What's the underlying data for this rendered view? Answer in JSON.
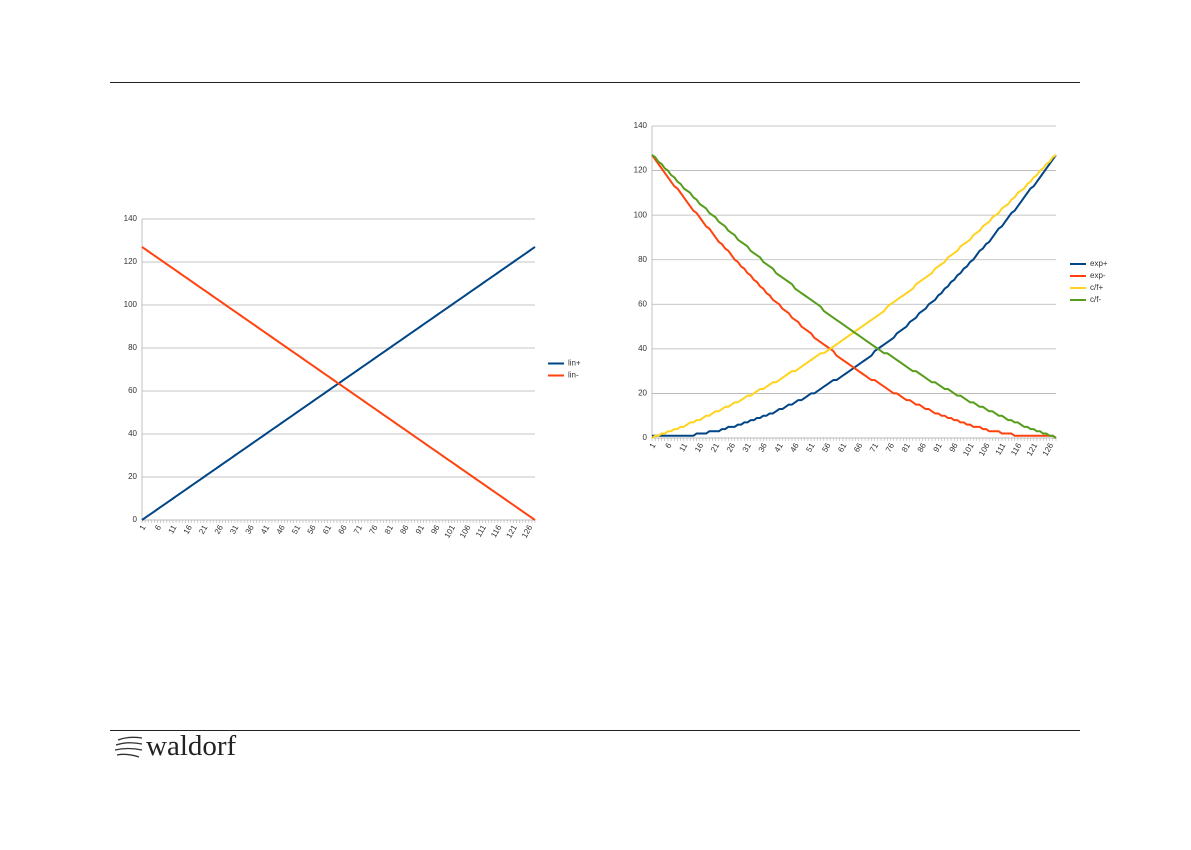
{
  "footer": {
    "logo": "waldorf"
  },
  "chart_data": [
    {
      "type": "line",
      "legend": "right",
      "grid": true,
      "categories": [
        1,
        null,
        null,
        null,
        null,
        6,
        null,
        null,
        null,
        null,
        11,
        null,
        null,
        null,
        null,
        16,
        null,
        null,
        null,
        null,
        21,
        null,
        null,
        null,
        null,
        26,
        null,
        null,
        null,
        null,
        31,
        null,
        null,
        null,
        null,
        36,
        null,
        null,
        null,
        null,
        41,
        null,
        null,
        null,
        null,
        46,
        null,
        null,
        null,
        null,
        51,
        null,
        null,
        null,
        null,
        56,
        null,
        null,
        null,
        null,
        61,
        null,
        null,
        null,
        null,
        66,
        null,
        null,
        null,
        null,
        71,
        null,
        null,
        null,
        null,
        76,
        null,
        null,
        null,
        null,
        81,
        null,
        null,
        null,
        null,
        86,
        null,
        null,
        null,
        null,
        91,
        null,
        null,
        null,
        null,
        96,
        null,
        null,
        null,
        null,
        101,
        null,
        null,
        null,
        null,
        106,
        null,
        null,
        null,
        null,
        111,
        null,
        null,
        null,
        null,
        116,
        null,
        null,
        null,
        null,
        121,
        null,
        null,
        null,
        null,
        126,
        null,
        null
      ],
      "ylim": [
        0,
        140
      ],
      "yticks": [
        0,
        20,
        40,
        60,
        80,
        100,
        120,
        140
      ],
      "series": [
        {
          "name": "lin+",
          "color": "#004586",
          "values": [
            0,
            1,
            2,
            3,
            4,
            5,
            6,
            7,
            8,
            9,
            10,
            11,
            12,
            13,
            14,
            15,
            16,
            17,
            18,
            19,
            20,
            21,
            22,
            23,
            24,
            25,
            26,
            27,
            28,
            29,
            30,
            31,
            32,
            33,
            34,
            35,
            36,
            37,
            38,
            39,
            40,
            41,
            42,
            43,
            44,
            45,
            46,
            47,
            48,
            49,
            50,
            51,
            52,
            53,
            54,
            55,
            56,
            57,
            58,
            59,
            60,
            61,
            62,
            63,
            64,
            65,
            66,
            67,
            68,
            69,
            70,
            71,
            72,
            73,
            74,
            75,
            76,
            77,
            78,
            79,
            80,
            81,
            82,
            83,
            84,
            85,
            86,
            87,
            88,
            89,
            90,
            91,
            92,
            93,
            94,
            95,
            96,
            97,
            98,
            99,
            100,
            101,
            102,
            103,
            104,
            105,
            106,
            107,
            108,
            109,
            110,
            111,
            112,
            113,
            114,
            115,
            116,
            117,
            118,
            119,
            120,
            121,
            122,
            123,
            124,
            125,
            126,
            127
          ]
        },
        {
          "name": "lin-",
          "color": "#ff420e",
          "values": [
            127,
            126,
            125,
            124,
            123,
            122,
            121,
            120,
            119,
            118,
            117,
            116,
            115,
            114,
            113,
            112,
            111,
            110,
            109,
            108,
            107,
            106,
            105,
            104,
            103,
            102,
            101,
            100,
            99,
            98,
            97,
            96,
            95,
            94,
            93,
            92,
            91,
            90,
            89,
            88,
            87,
            86,
            85,
            84,
            83,
            82,
            81,
            80,
            79,
            78,
            77,
            76,
            75,
            74,
            73,
            72,
            71,
            70,
            69,
            68,
            67,
            66,
            65,
            64,
            63,
            62,
            61,
            60,
            59,
            58,
            57,
            56,
            55,
            54,
            53,
            52,
            51,
            50,
            49,
            48,
            47,
            46,
            45,
            44,
            43,
            42,
            41,
            40,
            39,
            38,
            37,
            36,
            35,
            34,
            33,
            32,
            31,
            30,
            29,
            28,
            27,
            26,
            25,
            24,
            23,
            22,
            21,
            20,
            19,
            18,
            17,
            16,
            15,
            14,
            13,
            12,
            11,
            10,
            9,
            8,
            7,
            6,
            5,
            4,
            3,
            2,
            1,
            0
          ]
        }
      ]
    },
    {
      "type": "line",
      "legend": "right",
      "grid": true,
      "categories": [
        1,
        null,
        null,
        null,
        null,
        6,
        null,
        null,
        null,
        null,
        11,
        null,
        null,
        null,
        null,
        16,
        null,
        null,
        null,
        null,
        21,
        null,
        null,
        null,
        null,
        26,
        null,
        null,
        null,
        null,
        31,
        null,
        null,
        null,
        null,
        36,
        null,
        null,
        null,
        null,
        41,
        null,
        null,
        null,
        null,
        46,
        null,
        null,
        null,
        null,
        51,
        null,
        null,
        null,
        null,
        56,
        null,
        null,
        null,
        null,
        61,
        null,
        null,
        null,
        null,
        66,
        null,
        null,
        null,
        null,
        71,
        null,
        null,
        null,
        null,
        76,
        null,
        null,
        null,
        null,
        81,
        null,
        null,
        null,
        null,
        86,
        null,
        null,
        null,
        null,
        91,
        null,
        null,
        null,
        null,
        96,
        null,
        null,
        null,
        null,
        101,
        null,
        null,
        null,
        null,
        106,
        null,
        null,
        null,
        null,
        111,
        null,
        null,
        null,
        null,
        116,
        null,
        null,
        null,
        null,
        121,
        null,
        null,
        null,
        null,
        126,
        null,
        null
      ],
      "ylim": [
        0,
        140
      ],
      "yticks": [
        0,
        20,
        40,
        60,
        80,
        100,
        120,
        140
      ],
      "series": [
        {
          "name": "exp+",
          "color": "#004586",
          "values": [
            1,
            1,
            1,
            1,
            1,
            1,
            1,
            1,
            1,
            1,
            1,
            1,
            1,
            1,
            2,
            2,
            2,
            2,
            3,
            3,
            3,
            3,
            4,
            4,
            5,
            5,
            5,
            6,
            6,
            7,
            7,
            8,
            8,
            9,
            9,
            10,
            10,
            11,
            11,
            12,
            13,
            13,
            14,
            15,
            15,
            16,
            17,
            17,
            18,
            19,
            20,
            20,
            21,
            22,
            23,
            24,
            25,
            26,
            26,
            27,
            28,
            29,
            30,
            31,
            32,
            33,
            34,
            35,
            36,
            37,
            39,
            40,
            41,
            42,
            43,
            44,
            45,
            47,
            48,
            49,
            50,
            52,
            53,
            54,
            56,
            57,
            58,
            60,
            61,
            62,
            64,
            65,
            67,
            68,
            70,
            71,
            73,
            74,
            76,
            77,
            79,
            80,
            82,
            84,
            85,
            87,
            88,
            90,
            92,
            94,
            95,
            97,
            99,
            101,
            102,
            104,
            106,
            108,
            110,
            112,
            113,
            115,
            117,
            119,
            121,
            123,
            125,
            127
          ]
        },
        {
          "name": "exp-",
          "color": "#ff420e",
          "values": [
            127,
            125,
            123,
            121,
            119,
            117,
            115,
            113,
            112,
            110,
            108,
            106,
            104,
            102,
            101,
            99,
            97,
            95,
            94,
            92,
            90,
            88,
            87,
            85,
            84,
            82,
            80,
            79,
            77,
            76,
            74,
            73,
            71,
            70,
            68,
            67,
            65,
            64,
            62,
            61,
            60,
            58,
            57,
            56,
            54,
            53,
            52,
            50,
            49,
            48,
            47,
            45,
            44,
            43,
            42,
            41,
            40,
            39,
            37,
            36,
            35,
            34,
            33,
            32,
            31,
            30,
            29,
            28,
            27,
            26,
            26,
            25,
            24,
            23,
            22,
            21,
            20,
            20,
            19,
            18,
            17,
            17,
            16,
            15,
            15,
            14,
            13,
            13,
            12,
            11,
            11,
            10,
            10,
            9,
            9,
            8,
            8,
            7,
            7,
            6,
            6,
            5,
            5,
            5,
            4,
            4,
            3,
            3,
            3,
            3,
            2,
            2,
            2,
            2,
            1,
            1,
            1,
            1,
            1,
            1,
            1,
            1,
            1,
            1,
            1,
            1,
            1,
            0
          ]
        },
        {
          "name": "c/f+",
          "color": "#ffd320",
          "values": [
            0,
            1,
            1,
            2,
            2,
            3,
            3,
            4,
            4,
            5,
            5,
            6,
            7,
            7,
            8,
            8,
            9,
            10,
            10,
            11,
            12,
            12,
            13,
            14,
            14,
            15,
            16,
            16,
            17,
            18,
            19,
            19,
            20,
            21,
            22,
            22,
            23,
            24,
            25,
            25,
            26,
            27,
            28,
            29,
            30,
            30,
            31,
            32,
            33,
            34,
            35,
            36,
            37,
            38,
            38,
            39,
            40,
            41,
            42,
            43,
            44,
            45,
            46,
            47,
            48,
            49,
            50,
            51,
            52,
            53,
            54,
            55,
            56,
            57,
            59,
            60,
            61,
            62,
            63,
            64,
            65,
            66,
            67,
            69,
            70,
            71,
            72,
            73,
            74,
            76,
            77,
            78,
            79,
            81,
            82,
            83,
            84,
            86,
            87,
            88,
            89,
            91,
            92,
            93,
            95,
            96,
            97,
            99,
            100,
            101,
            103,
            104,
            105,
            107,
            108,
            110,
            111,
            112,
            114,
            115,
            117,
            118,
            120,
            121,
            123,
            124,
            126,
            127
          ]
        },
        {
          "name": "c/f-",
          "color": "#579d1c",
          "values": [
            127,
            126,
            124,
            123,
            121,
            120,
            118,
            117,
            115,
            114,
            112,
            111,
            110,
            108,
            107,
            105,
            104,
            103,
            101,
            100,
            99,
            97,
            96,
            95,
            93,
            92,
            91,
            89,
            88,
            87,
            86,
            84,
            83,
            82,
            81,
            79,
            78,
            77,
            76,
            74,
            73,
            72,
            71,
            70,
            69,
            67,
            66,
            65,
            64,
            63,
            62,
            61,
            60,
            59,
            57,
            56,
            55,
            54,
            53,
            52,
            51,
            50,
            49,
            48,
            47,
            46,
            45,
            44,
            43,
            42,
            41,
            40,
            39,
            38,
            38,
            37,
            36,
            35,
            34,
            33,
            32,
            31,
            30,
            30,
            29,
            28,
            27,
            26,
            25,
            25,
            24,
            23,
            22,
            22,
            21,
            20,
            19,
            19,
            18,
            17,
            16,
            16,
            15,
            14,
            14,
            13,
            12,
            12,
            11,
            10,
            10,
            9,
            8,
            8,
            7,
            7,
            6,
            5,
            5,
            4,
            4,
            3,
            3,
            2,
            2,
            1,
            1,
            0
          ]
        }
      ]
    }
  ]
}
